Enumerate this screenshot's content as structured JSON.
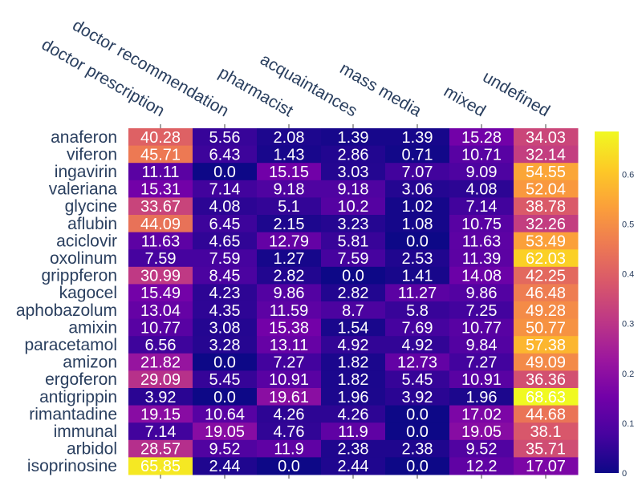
{
  "chart_data": {
    "type": "heatmap",
    "title": "",
    "xlabel": "",
    "ylabel": "",
    "x": [
      "doctor prescription",
      "doctor recommendation",
      "pharmacist",
      "acquaintances",
      "mass media",
      "mixed",
      "undefined"
    ],
    "y": [
      "anaferon",
      "viferon",
      "ingavirin",
      "valeriana",
      "glycine",
      "aflubin",
      "aciclovir",
      "oxolinum",
      "grippferon",
      "kagocel",
      "aphobazolum",
      "amixin",
      "paracetamol",
      "amizon",
      "ergoferon",
      "antigrippin",
      "rimantadine",
      "immunal",
      "arbidol",
      "isoprinosine"
    ],
    "z": [
      [
        40.28,
        5.56,
        2.08,
        1.39,
        1.39,
        15.28,
        34.03
      ],
      [
        45.71,
        6.43,
        1.43,
        2.86,
        0.71,
        10.71,
        32.14
      ],
      [
        11.11,
        0.0,
        15.15,
        3.03,
        7.07,
        9.09,
        54.55
      ],
      [
        15.31,
        7.14,
        9.18,
        9.18,
        3.06,
        4.08,
        52.04
      ],
      [
        33.67,
        4.08,
        5.1,
        10.2,
        1.02,
        7.14,
        38.78
      ],
      [
        44.09,
        6.45,
        2.15,
        3.23,
        1.08,
        10.75,
        32.26
      ],
      [
        11.63,
        4.65,
        12.79,
        5.81,
        0.0,
        11.63,
        53.49
      ],
      [
        7.59,
        7.59,
        1.27,
        7.59,
        2.53,
        11.39,
        62.03
      ],
      [
        30.99,
        8.45,
        2.82,
        0.0,
        1.41,
        14.08,
        42.25
      ],
      [
        15.49,
        4.23,
        9.86,
        2.82,
        11.27,
        9.86,
        46.48
      ],
      [
        13.04,
        4.35,
        11.59,
        8.7,
        5.8,
        7.25,
        49.28
      ],
      [
        10.77,
        3.08,
        15.38,
        1.54,
        7.69,
        10.77,
        50.77
      ],
      [
        6.56,
        3.28,
        13.11,
        4.92,
        4.92,
        9.84,
        57.38
      ],
      [
        21.82,
        0.0,
        7.27,
        1.82,
        12.73,
        7.27,
        49.09
      ],
      [
        29.09,
        5.45,
        10.91,
        1.82,
        5.45,
        10.91,
        36.36
      ],
      [
        3.92,
        0.0,
        19.61,
        1.96,
        3.92,
        1.96,
        68.63
      ],
      [
        19.15,
        10.64,
        4.26,
        4.26,
        0.0,
        17.02,
        44.68
      ],
      [
        7.14,
        19.05,
        4.76,
        11.9,
        0.0,
        19.05,
        38.1
      ],
      [
        28.57,
        9.52,
        11.9,
        2.38,
        2.38,
        9.52,
        35.71
      ],
      [
        65.85,
        2.44,
        0.0,
        2.44,
        0.0,
        12.2,
        17.07
      ]
    ],
    "cell_labels": [
      [
        "40.28",
        "5.56",
        "2.08",
        "1.39",
        "1.39",
        "15.28",
        "34.03"
      ],
      [
        "45.71",
        "6.43",
        "1.43",
        "2.86",
        "0.71",
        "10.71",
        "32.14"
      ],
      [
        "11.11",
        "0.0",
        "15.15",
        "3.03",
        "7.07",
        "9.09",
        "54.55"
      ],
      [
        "15.31",
        "7.14",
        "9.18",
        "9.18",
        "3.06",
        "4.08",
        "52.04"
      ],
      [
        "33.67",
        "4.08",
        "5.1",
        "10.2",
        "1.02",
        "7.14",
        "38.78"
      ],
      [
        "44.09",
        "6.45",
        "2.15",
        "3.23",
        "1.08",
        "10.75",
        "32.26"
      ],
      [
        "11.63",
        "4.65",
        "12.79",
        "5.81",
        "0.0",
        "11.63",
        "53.49"
      ],
      [
        "7.59",
        "7.59",
        "1.27",
        "7.59",
        "2.53",
        "11.39",
        "62.03"
      ],
      [
        "30.99",
        "8.45",
        "2.82",
        "0.0",
        "1.41",
        "14.08",
        "42.25"
      ],
      [
        "15.49",
        "4.23",
        "9.86",
        "2.82",
        "11.27",
        "9.86",
        "46.48"
      ],
      [
        "13.04",
        "4.35",
        "11.59",
        "8.7",
        "5.8",
        "7.25",
        "49.28"
      ],
      [
        "10.77",
        "3.08",
        "15.38",
        "1.54",
        "7.69",
        "10.77",
        "50.77"
      ],
      [
        "6.56",
        "3.28",
        "13.11",
        "4.92",
        "4.92",
        "9.84",
        "57.38"
      ],
      [
        "21.82",
        "0.0",
        "7.27",
        "1.82",
        "12.73",
        "7.27",
        "49.09"
      ],
      [
        "29.09",
        "5.45",
        "10.91",
        "1.82",
        "5.45",
        "10.91",
        "36.36"
      ],
      [
        "3.92",
        "0.0",
        "19.61",
        "1.96",
        "3.92",
        "1.96",
        "68.63"
      ],
      [
        "19.15",
        "10.64",
        "4.26",
        "4.26",
        "0.0",
        "17.02",
        "44.68"
      ],
      [
        "7.14",
        "19.05",
        "4.76",
        "11.9",
        "0.0",
        "19.05",
        "38.1"
      ],
      [
        "28.57",
        "9.52",
        "11.9",
        "2.38",
        "2.38",
        "9.52",
        "35.71"
      ],
      [
        "65.85",
        "2.44",
        "0.0",
        "2.44",
        "0.0",
        "12.2",
        "17.07"
      ]
    ],
    "x_axis_position": "top",
    "colorscale": "plasma",
    "colorscale_stops": [
      "#0d0887",
      "#46039f",
      "#7201a8",
      "#9c179e",
      "#bd3786",
      "#d8576b",
      "#ed7953",
      "#fb9f3a",
      "#fdca26",
      "#f0f921"
    ],
    "colorbar": {
      "range": [
        0,
        0.686
      ],
      "ticks": [
        0,
        0.1,
        0.2,
        0.3,
        0.4,
        0.5,
        0.6
      ],
      "tick_labels": [
        "0",
        "0.1",
        "0.2",
        "0.3",
        "0.4",
        "0.5",
        "0.6"
      ]
    },
    "value_scale_note": "colour encodes fraction (cell value / 100)",
    "text_color": "#ffffff",
    "axis_text_color": "#2a3f5f"
  }
}
